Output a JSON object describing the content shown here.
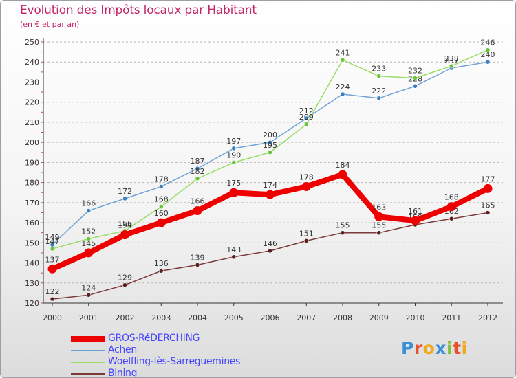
{
  "title": "Evolution des Impôts locaux par Habitant",
  "subtitle": "(en € et par an)",
  "logo": {
    "text": "Proxiti",
    "letter_colors": [
      "#3a8fd6",
      "#e8502c",
      "#f0a91a",
      "#3a8fd6",
      "#7cc23c",
      "#e8502c",
      "#f0a91a"
    ]
  },
  "chart_data": {
    "type": "line",
    "title": "Evolution des Impôts locaux par Habitant",
    "subtitle": "(en € et par an)",
    "xlabel": "",
    "ylabel": "",
    "ylim": [
      120,
      250
    ],
    "y_ticks": [
      120,
      130,
      140,
      150,
      160,
      170,
      180,
      190,
      200,
      210,
      220,
      230,
      240,
      250
    ],
    "x": [
      "2000",
      "2001",
      "2002",
      "2003",
      "2004",
      "2005",
      "2006",
      "2007",
      "2008",
      "2009",
      "2010",
      "2011",
      "2012"
    ],
    "grid": "horizontal dashed",
    "legend_position": "bottom-left",
    "series": [
      {
        "name": "Achen",
        "color": "#6fa3d4",
        "marker": "#3a7fc4",
        "values": [
          149,
          166,
          172,
          178,
          187,
          197,
          200,
          212,
          224,
          222,
          228,
          237,
          240
        ],
        "width": 1.5,
        "label_offset": [
          0,
          -7
        ]
      },
      {
        "name": "Woelfling-lès-Sarreguemines",
        "color": "#99dd66",
        "marker": "#6ac43a",
        "values": [
          147,
          152,
          156,
          168,
          182,
          190,
          195,
          209,
          241,
          233,
          232,
          238,
          246
        ],
        "width": 1.5,
        "label_offset": [
          0,
          -7
        ]
      },
      {
        "name": "Bining",
        "color": "#7a3a3a",
        "marker": "#5a1f1f",
        "values": [
          122,
          124,
          129,
          136,
          139,
          143,
          146,
          151,
          155,
          155,
          159,
          162,
          165
        ],
        "width": 1.5,
        "label_offset": [
          0,
          -7
        ]
      },
      {
        "name": "GROS-RéDERCHING",
        "color": "#ee0000",
        "marker": "#ee0000",
        "values": [
          137,
          145,
          154,
          160,
          166,
          175,
          174,
          178,
          184,
          163,
          161,
          168,
          177
        ],
        "width": 8,
        "label_offset": [
          0,
          -10
        ]
      }
    ],
    "legend": [
      {
        "name": "GROS-RéDERCHING",
        "color": "#ee0000",
        "width": 8
      },
      {
        "name": "Achen",
        "color": "#6fa3d4",
        "width": 2
      },
      {
        "name": "Woelfling-lès-Sarreguemines",
        "color": "#99dd66",
        "width": 2
      },
      {
        "name": "Bining",
        "color": "#7a3a3a",
        "width": 2
      }
    ]
  }
}
